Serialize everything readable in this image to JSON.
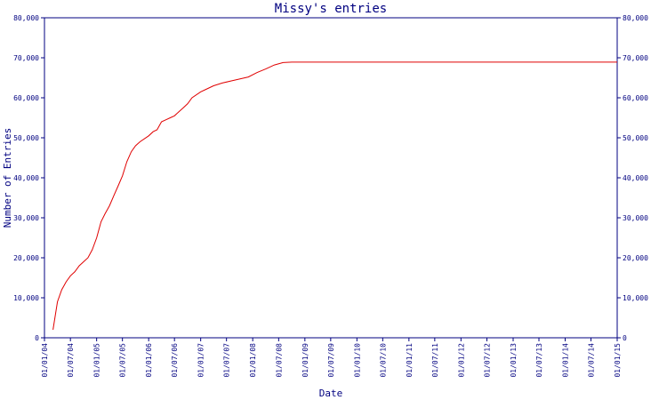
{
  "chart_data": {
    "type": "line",
    "title": "Missy's entries",
    "xlabel": "Date",
    "ylabel": "Number of Entries",
    "ylim": [
      0,
      80000
    ],
    "xlim": [
      "2004-01-01",
      "2015-01-01"
    ],
    "y_ticks": [
      0,
      10000,
      20000,
      30000,
      40000,
      50000,
      60000,
      70000,
      80000
    ],
    "y_tick_labels": [
      "0",
      "10,000",
      "20,000",
      "30,000",
      "40,000",
      "50,000",
      "60,000",
      "70,000",
      "80,000"
    ],
    "x_ticks": [
      "2004-01-01",
      "2004-07-01",
      "2005-01-01",
      "2005-07-01",
      "2006-01-01",
      "2006-07-01",
      "2007-01-01",
      "2007-07-01",
      "2008-01-01",
      "2008-07-01",
      "2009-01-01",
      "2009-07-01",
      "2010-01-01",
      "2010-07-01",
      "2011-01-01",
      "2011-07-01",
      "2012-01-01",
      "2012-07-01",
      "2013-01-01",
      "2013-07-01",
      "2014-01-01",
      "2014-07-01",
      "2015-01-01"
    ],
    "x_tick_labels": [
      "01/01/04",
      "01/07/04",
      "01/01/05",
      "01/07/05",
      "01/01/06",
      "01/07/06",
      "01/01/07",
      "01/07/07",
      "01/01/08",
      "01/07/08",
      "01/01/09",
      "01/07/09",
      "01/01/10",
      "01/07/10",
      "01/01/11",
      "01/07/11",
      "01/01/12",
      "01/07/12",
      "01/01/13",
      "01/07/13",
      "01/01/14",
      "01/07/14",
      "01/01/15"
    ],
    "grid": false,
    "color": "#e00000",
    "series": [
      {
        "points": [
          [
            "2004-03-01",
            2000
          ],
          [
            "2004-04-01",
            9000
          ],
          [
            "2004-05-01",
            12000
          ],
          [
            "2004-06-01",
            14000
          ],
          [
            "2004-07-01",
            15500
          ],
          [
            "2004-08-01",
            16500
          ],
          [
            "2004-09-01",
            18000
          ],
          [
            "2004-11-01",
            20000
          ],
          [
            "2004-12-01",
            22000
          ],
          [
            "2005-01-01",
            25000
          ],
          [
            "2005-02-01",
            29000
          ],
          [
            "2005-03-01",
            31000
          ],
          [
            "2005-04-01",
            33000
          ],
          [
            "2005-05-01",
            35500
          ],
          [
            "2005-06-01",
            38000
          ],
          [
            "2005-07-01",
            40500
          ],
          [
            "2005-08-01",
            44000
          ],
          [
            "2005-09-01",
            46500
          ],
          [
            "2005-10-01",
            48000
          ],
          [
            "2005-11-01",
            49000
          ],
          [
            "2006-01-01",
            50500
          ],
          [
            "2006-02-01",
            51500
          ],
          [
            "2006-03-01",
            52000
          ],
          [
            "2006-04-01",
            54000
          ],
          [
            "2006-05-01",
            54500
          ],
          [
            "2006-06-01",
            55000
          ],
          [
            "2006-07-01",
            55500
          ],
          [
            "2006-08-01",
            56500
          ],
          [
            "2006-09-01",
            57500
          ],
          [
            "2006-10-01",
            58500
          ],
          [
            "2006-11-01",
            60000
          ],
          [
            "2007-01-01",
            61500
          ],
          [
            "2007-02-01",
            62000
          ],
          [
            "2007-04-01",
            63000
          ],
          [
            "2007-06-01",
            63700
          ],
          [
            "2007-08-01",
            64200
          ],
          [
            "2007-10-01",
            64700
          ],
          [
            "2007-12-01",
            65200
          ],
          [
            "2008-02-01",
            66300
          ],
          [
            "2008-04-01",
            67200
          ],
          [
            "2008-06-01",
            68200
          ],
          [
            "2008-08-01",
            68800
          ],
          [
            "2008-10-01",
            68900
          ],
          [
            "2015-01-01",
            68900
          ]
        ]
      }
    ]
  }
}
